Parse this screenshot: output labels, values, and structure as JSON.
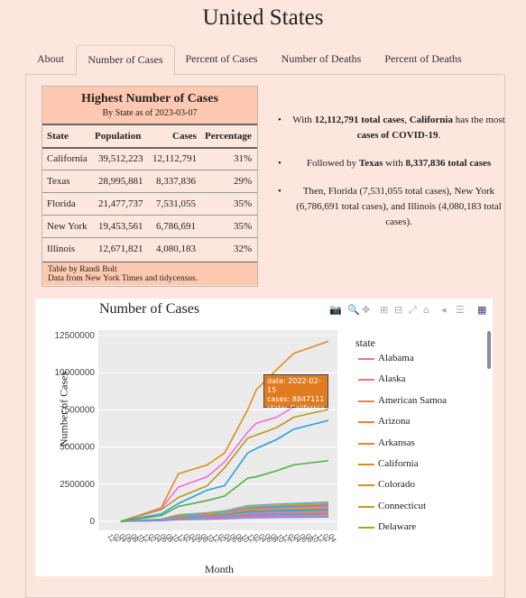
{
  "page": {
    "title": "United States"
  },
  "tabs": [
    {
      "label": "About",
      "active": false
    },
    {
      "label": "Number of Cases",
      "active": true
    },
    {
      "label": "Percent of Cases",
      "active": false
    },
    {
      "label": "Number of Deaths",
      "active": false
    },
    {
      "label": "Percent of Deaths",
      "active": false
    }
  ],
  "table": {
    "title": "Highest Number of Cases",
    "subtitle": "By State as of 2023-03-07",
    "headers": [
      "State",
      "Population",
      "Cases",
      "Percentage"
    ],
    "rows": [
      [
        "California",
        "39,512,223",
        "12,112,791",
        "31%"
      ],
      [
        "Texas",
        "28,995,881",
        "8,337,836",
        "29%"
      ],
      [
        "Florida",
        "21,477,737",
        "7,531,055",
        "35%"
      ],
      [
        "New York",
        "19,453,561",
        "6,786,691",
        "35%"
      ],
      [
        "Illinois",
        "12,671,821",
        "4,080,183",
        "32%"
      ]
    ],
    "footer1": "Table by Randi Bolt",
    "footer2": "Data from New York Times and tidycensus."
  },
  "bullets": {
    "b1_pre": "With ",
    "b1_bold1": "12,112,791 total cases",
    "b1_mid": ", ",
    "b1_bold2": "California",
    "b1_mid2": " has the most ",
    "b1_bold3": "cases of COVID-19",
    "b1_end": ".",
    "b2_pre": "Followed by ",
    "b2_bold1": "Texas",
    "b2_mid": " with ",
    "b2_bold2": "8,337,836 total cases",
    "b3": "Then, Florida (7,531,055 total cases), New York (6,786,691 total cases), and Illinois (4,080,183 total cases)."
  },
  "chart": {
    "title": "Number of Cases",
    "xlabel": "Month",
    "ylabel": "Number of Cases",
    "legend_title": "state",
    "yticks": [
      "12500000",
      "10000000",
      "7500000",
      "5000000",
      "2500000",
      "0"
    ],
    "xticks": [
      "12",
      "02",
      "04",
      "06",
      "08",
      "10",
      "12",
      "02",
      "04",
      "06",
      "08",
      "10",
      "12",
      "02",
      "04",
      "06",
      "08",
      "10",
      "12",
      "02",
      "04",
      "06",
      "08",
      "10",
      "12",
      "02",
      "04",
      "06",
      "08",
      "10",
      "12",
      "02",
      "04",
      "06",
      "08",
      "10",
      "12",
      "02",
      "04"
    ],
    "tooltip": {
      "line1": "date: 2022-02-15",
      "line2": "cases:  8847111",
      "line3": "state: California"
    },
    "legend": [
      {
        "name": "Alabama",
        "color": "#f8766d"
      },
      {
        "name": "Alaska",
        "color": "#f8766d"
      },
      {
        "name": "American Samoa",
        "color": "#f47a5a"
      },
      {
        "name": "Arizona",
        "color": "#ee7d3b"
      },
      {
        "name": "Arkansas",
        "color": "#e8832c"
      },
      {
        "name": "California",
        "color": "#e08b20"
      },
      {
        "name": "Colorado",
        "color": "#d88f1f"
      },
      {
        "name": "Connecticut",
        "color": "#cf941d"
      },
      {
        "name": "Delaware",
        "color": "#c3991b"
      }
    ]
  },
  "chart_data": {
    "type": "line",
    "title": "Number of Cases",
    "xlabel": "Month",
    "ylabel": "Number of Cases",
    "ylim": [
      0,
      12500000
    ],
    "series": [
      {
        "name": "California",
        "x": [
          "2020-03",
          "2020-10",
          "2021-01",
          "2021-06",
          "2021-09",
          "2022-01",
          "2022-02-15",
          "2022-06",
          "2022-09",
          "2023-03"
        ],
        "values": [
          0,
          900000,
          3200000,
          3800000,
          4600000,
          7500000,
          8847111,
          10200000,
          11300000,
          12112791
        ]
      },
      {
        "name": "Texas",
        "x": [
          "2020-03",
          "2020-10",
          "2021-01",
          "2021-06",
          "2021-09",
          "2022-01",
          "2022-02-15",
          "2022-06",
          "2022-09",
          "2023-03"
        ],
        "values": [
          0,
          850000,
          2300000,
          3000000,
          4000000,
          6000000,
          6600000,
          7000000,
          7700000,
          8337836
        ]
      },
      {
        "name": "Florida",
        "x": [
          "2020-03",
          "2020-10",
          "2021-01",
          "2021-06",
          "2021-09",
          "2022-01",
          "2022-02-15",
          "2022-06",
          "2022-09",
          "2023-03"
        ],
        "values": [
          0,
          780000,
          1600000,
          2400000,
          3600000,
          5600000,
          5800000,
          6300000,
          7000000,
          7531055
        ]
      },
      {
        "name": "New York",
        "x": [
          "2020-03",
          "2020-10",
          "2021-01",
          "2021-06",
          "2021-09",
          "2022-01",
          "2022-02-15",
          "2022-06",
          "2022-09",
          "2023-03"
        ],
        "values": [
          0,
          500000,
          1200000,
          2100000,
          2400000,
          4600000,
          4900000,
          5500000,
          6200000,
          6786691
        ]
      },
      {
        "name": "Illinois",
        "x": [
          "2020-03",
          "2020-10",
          "2021-01",
          "2021-06",
          "2021-09",
          "2022-01",
          "2022-02-15",
          "2022-06",
          "2022-09",
          "2023-03"
        ],
        "values": [
          0,
          380000,
          1000000,
          1400000,
          1700000,
          2900000,
          3000000,
          3400000,
          3800000,
          4080183
        ]
      }
    ]
  }
}
